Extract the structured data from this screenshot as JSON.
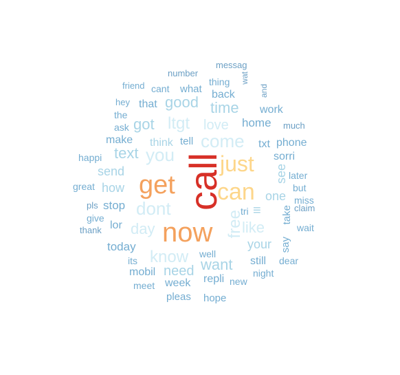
{
  "colors": {
    "red": "#d73027",
    "orange": "#f4a15d",
    "yellow": "#fdd68a",
    "paleblue": "#d2ecf5",
    "lightblue": "#a8d4e6",
    "blue": "#74add1",
    "steel": "#6b9fc4"
  },
  "words": [
    {
      "text": "call",
      "tier": "red",
      "weight": 56
    },
    {
      "text": "now",
      "tier": "orange",
      "weight": 40
    },
    {
      "text": "get",
      "tier": "orange",
      "weight": 38
    },
    {
      "text": "can",
      "tier": "yellow",
      "weight": 34
    },
    {
      "text": "just",
      "tier": "yellow",
      "weight": 32
    },
    {
      "text": "free",
      "tier": "paleblue",
      "weight": 24
    },
    {
      "text": "dont",
      "tier": "paleblue",
      "weight": 26
    },
    {
      "text": "you",
      "tier": "paleblue",
      "weight": 26
    },
    {
      "text": "come",
      "tier": "paleblue",
      "weight": 26
    },
    {
      "text": "know",
      "tier": "paleblue",
      "weight": 24
    },
    {
      "text": "ltgt",
      "tier": "paleblue",
      "weight": 24
    },
    {
      "text": "day",
      "tier": "paleblue",
      "weight": 22
    },
    {
      "text": "like",
      "tier": "paleblue",
      "weight": 22
    },
    {
      "text": "love",
      "tier": "paleblue",
      "weight": 20
    },
    {
      "text": "text",
      "tier": "lightblue",
      "weight": 22
    },
    {
      "text": "good",
      "tier": "lightblue",
      "weight": 22
    },
    {
      "text": "time",
      "tier": "lightblue",
      "weight": 22
    },
    {
      "text": "got",
      "tier": "lightblue",
      "weight": 22
    },
    {
      "text": "want",
      "tier": "lightblue",
      "weight": 22
    },
    {
      "text": "need",
      "tier": "lightblue",
      "weight": 20
    },
    {
      "text": "send",
      "tier": "lightblue",
      "weight": 18
    },
    {
      "text": "how",
      "tier": "lightblue",
      "weight": 18
    },
    {
      "text": "see",
      "tier": "lightblue",
      "weight": 18
    },
    {
      "text": "one",
      "tier": "lightblue",
      "weight": 18
    },
    {
      "text": "your",
      "tier": "lightblue",
      "weight": 18
    },
    {
      "text": "think",
      "tier": "lightblue",
      "weight": 16
    },
    {
      "text": "home",
      "tier": "blue",
      "weight": 17
    },
    {
      "text": "stop",
      "tier": "blue",
      "weight": 17
    },
    {
      "text": "make",
      "tier": "blue",
      "weight": 16
    },
    {
      "text": "today",
      "tier": "blue",
      "weight": 17
    },
    {
      "text": "week",
      "tier": "blue",
      "weight": 16
    },
    {
      "text": "repli",
      "tier": "blue",
      "weight": 16
    },
    {
      "text": "work",
      "tier": "blue",
      "weight": 16
    },
    {
      "text": "lor",
      "tier": "blue",
      "weight": 16
    },
    {
      "text": "mobil",
      "tier": "blue",
      "weight": 16
    },
    {
      "text": "still",
      "tier": "blue",
      "weight": 16
    },
    {
      "text": "txt",
      "tier": "blue",
      "weight": 16
    },
    {
      "text": "sorri",
      "tier": "blue",
      "weight": 16
    },
    {
      "text": "phone",
      "tier": "blue",
      "weight": 16
    },
    {
      "text": "that",
      "tier": "blue",
      "weight": 16
    },
    {
      "text": "back",
      "tier": "blue",
      "weight": 16
    },
    {
      "text": "what",
      "tier": "blue",
      "weight": 15
    },
    {
      "text": "tell",
      "tier": "blue",
      "weight": 15
    },
    {
      "text": "say",
      "tier": "blue",
      "weight": 15
    },
    {
      "text": "take",
      "tier": "blue",
      "weight": 15
    },
    {
      "text": "ask",
      "tier": "blue",
      "weight": 14
    },
    {
      "text": "new",
      "tier": "blue",
      "weight": 14
    },
    {
      "text": "pleas",
      "tier": "blue",
      "weight": 15
    },
    {
      "text": "hope",
      "tier": "blue",
      "weight": 15
    },
    {
      "text": "meet",
      "tier": "blue",
      "weight": 14
    },
    {
      "text": "well",
      "tier": "blue",
      "weight": 14
    },
    {
      "text": "its",
      "tier": "blue",
      "weight": 14
    },
    {
      "text": "thing",
      "tier": "blue",
      "weight": 14
    },
    {
      "text": "tri",
      "tier": "blue",
      "weight": 14
    },
    {
      "text": "night",
      "tier": "blue",
      "weight": 14
    },
    {
      "text": "give",
      "tier": "blue",
      "weight": 14
    },
    {
      "text": "but",
      "tier": "blue",
      "weight": 14
    },
    {
      "text": "later",
      "tier": "blue",
      "weight": 14
    },
    {
      "text": "miss",
      "tier": "blue",
      "weight": 14
    },
    {
      "text": "dear",
      "tier": "blue",
      "weight": 14
    },
    {
      "text": "great",
      "tier": "blue",
      "weight": 14
    },
    {
      "text": "happi",
      "tier": "blue",
      "weight": 14
    },
    {
      "text": "wait",
      "tier": "blue",
      "weight": 14
    },
    {
      "text": "cant",
      "tier": "blue",
      "weight": 14
    },
    {
      "text": "the",
      "tier": "blue",
      "weight": 14
    },
    {
      "text": "hey",
      "tier": "blue",
      "weight": 13
    },
    {
      "text": "friend",
      "tier": "blue",
      "weight": 13
    },
    {
      "text": "number",
      "tier": "steel",
      "weight": 13
    },
    {
      "text": "messag",
      "tier": "steel",
      "weight": 13
    },
    {
      "text": "much",
      "tier": "steel",
      "weight": 13
    },
    {
      "text": "claim",
      "tier": "steel",
      "weight": 13
    },
    {
      "text": "thank",
      "tier": "steel",
      "weight": 13
    },
    {
      "text": "pls",
      "tier": "steel",
      "weight": 13
    },
    {
      "text": "and",
      "tier": "steel",
      "weight": 12
    },
    {
      "text": "wat",
      "tier": "steel",
      "weight": 12
    }
  ]
}
